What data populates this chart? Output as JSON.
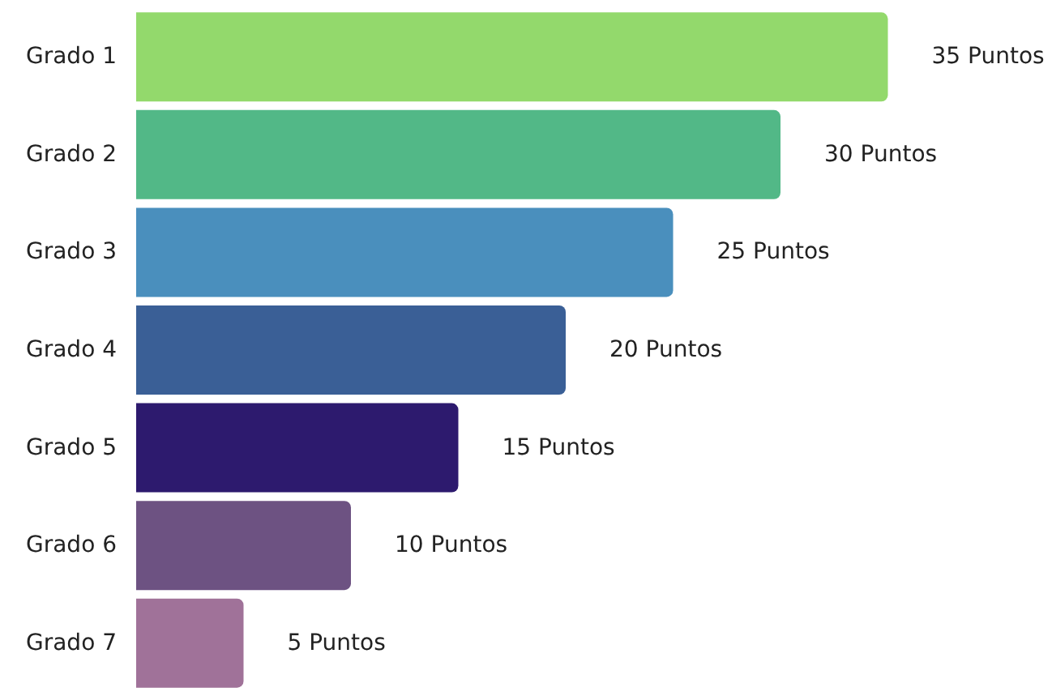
{
  "chart_data": {
    "type": "bar",
    "orientation": "horizontal",
    "categories": [
      "Grado 1",
      "Grado 2",
      "Grado 3",
      "Grado 4",
      "Grado 5",
      "Grado 6",
      "Grado 7"
    ],
    "values": [
      35,
      30,
      25,
      20,
      15,
      10,
      5
    ],
    "colors": [
      "#93d96c",
      "#52b887",
      "#4a8fbd",
      "#3a5f96",
      "#2d1a6e",
      "#6d5282",
      "#a07299"
    ],
    "value_labels": [
      "35 Puntos",
      "30 Puntos",
      "25 Puntos",
      "20 Puntos",
      "15 Puntos",
      "10 Puntos",
      "5 Puntos"
    ],
    "tick_labels": "y"
  }
}
